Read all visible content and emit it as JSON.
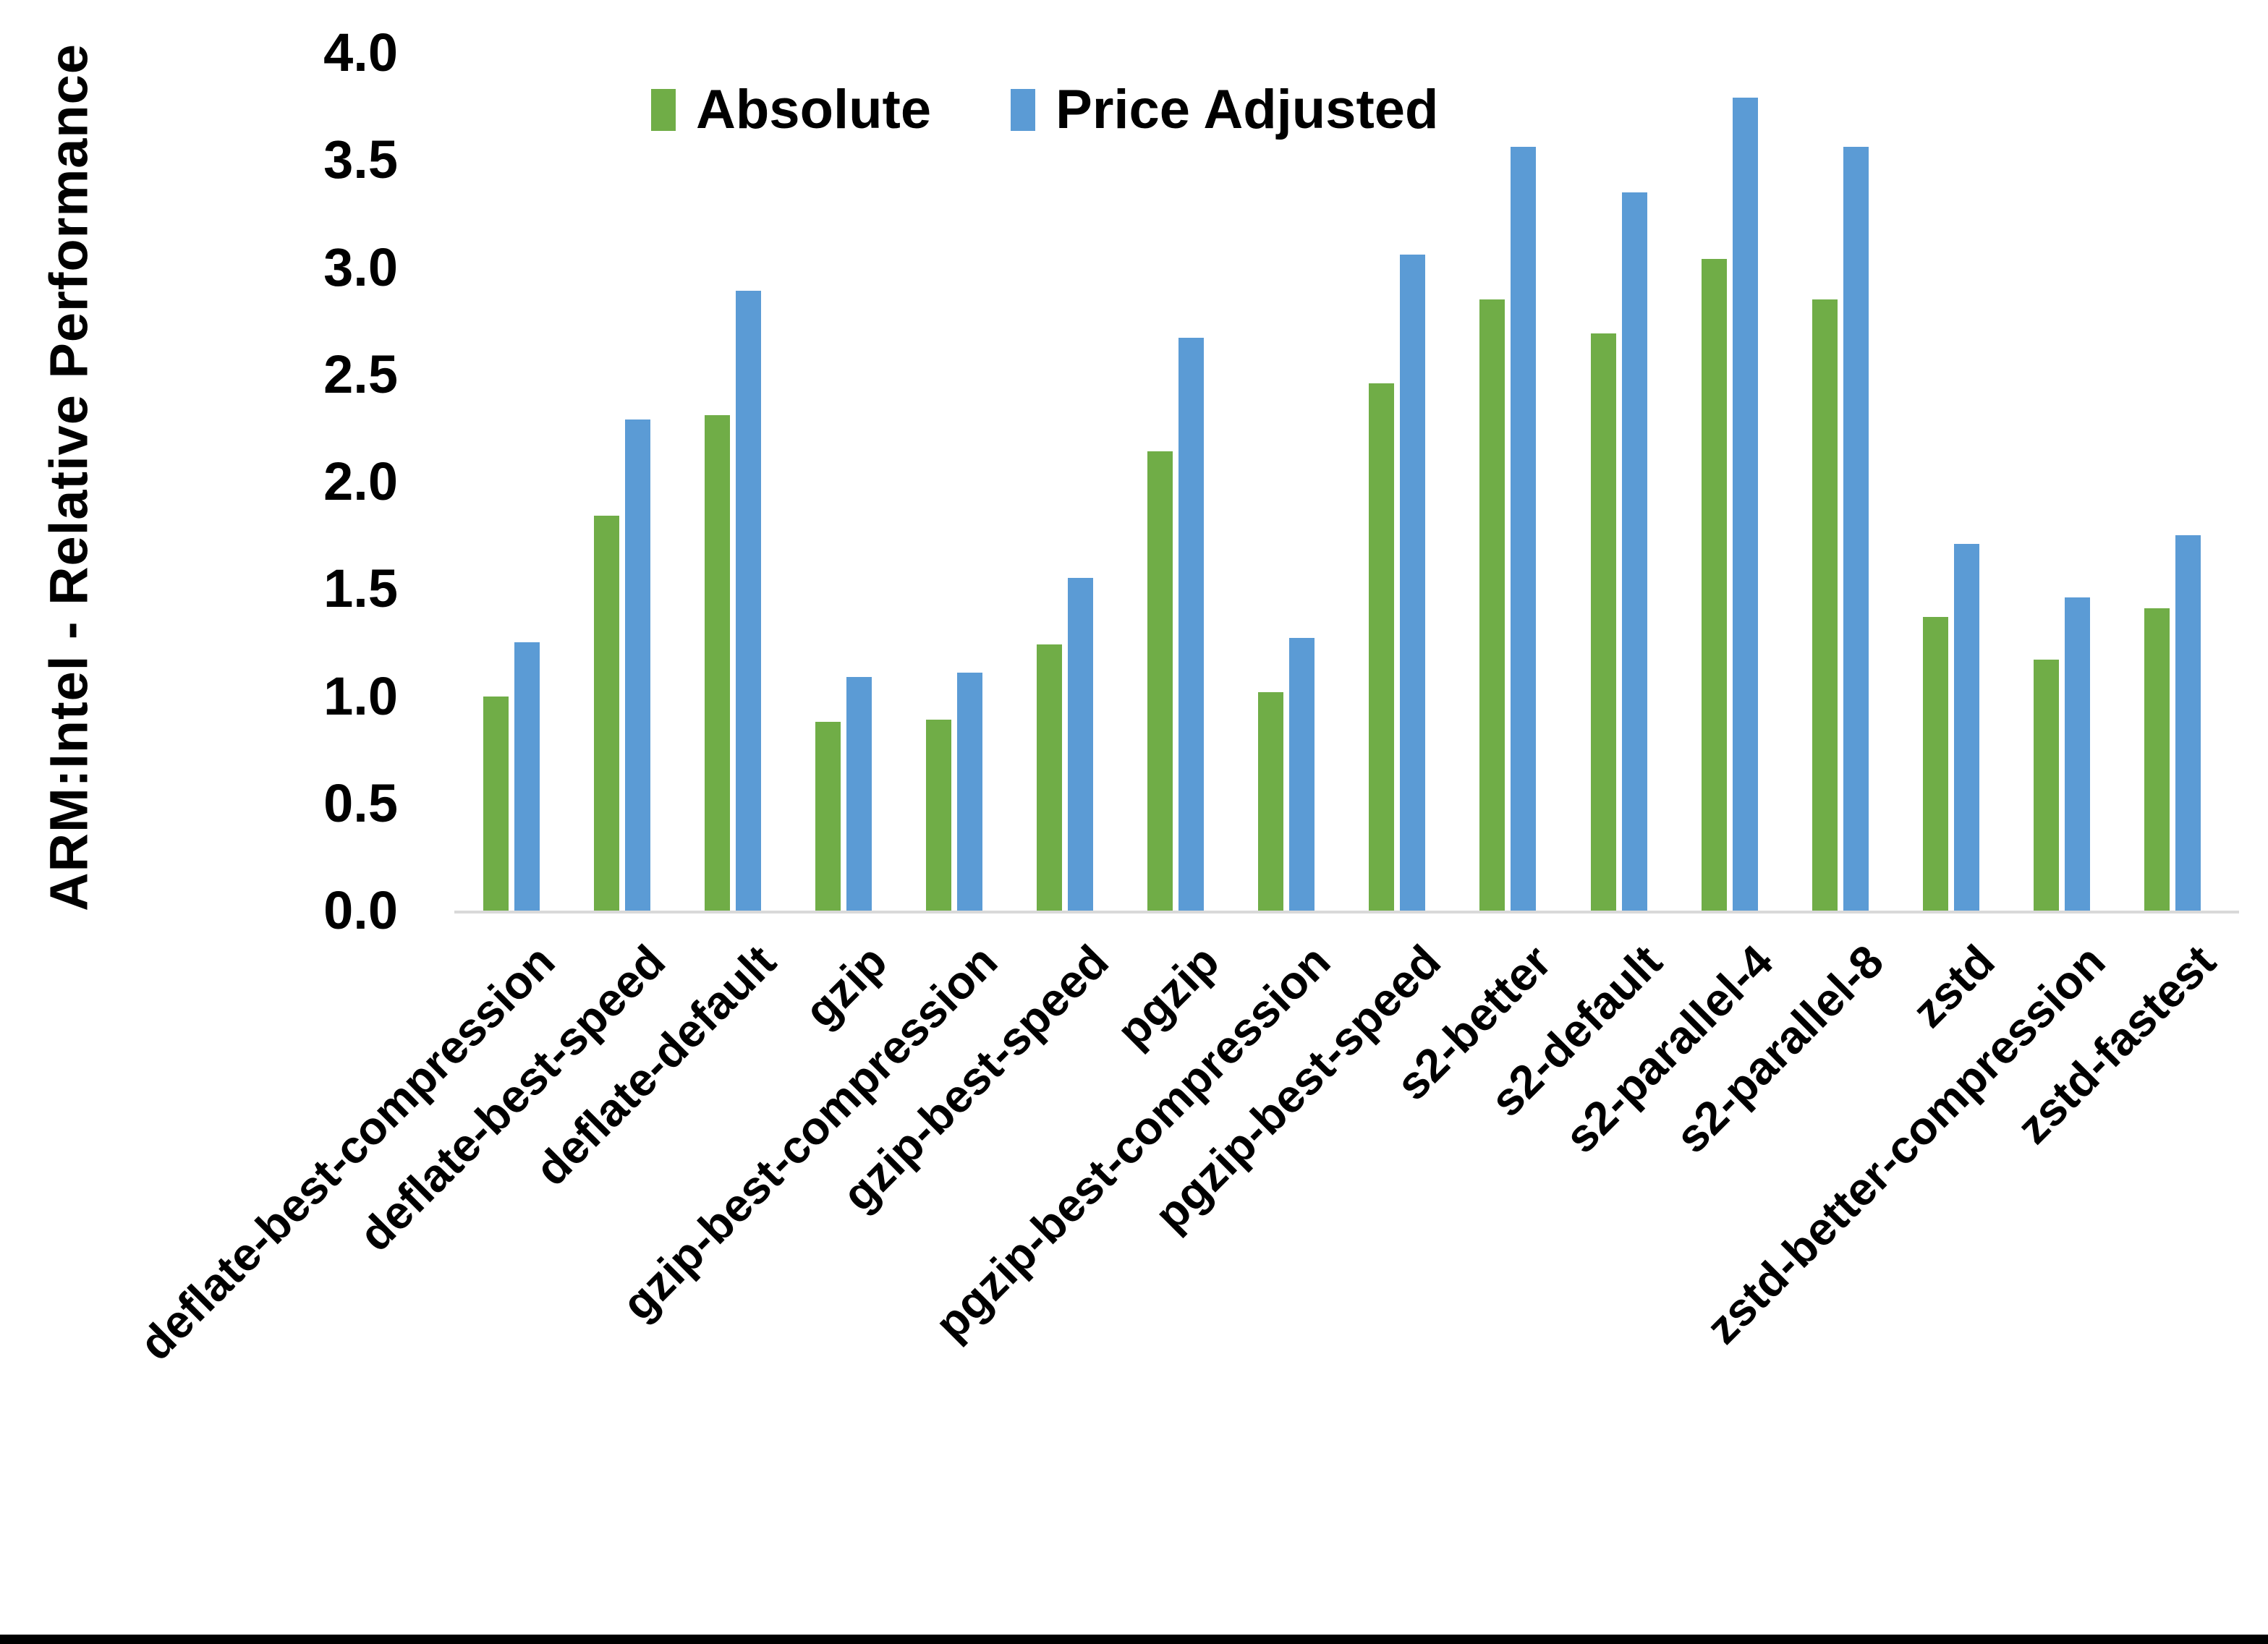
{
  "chart_data": {
    "type": "bar",
    "title": "",
    "xlabel": "",
    "ylabel": "ARM:Intel - Relative Performance",
    "ylim": [
      0.0,
      4.0
    ],
    "ytick_labels": [
      "4.0",
      "3.5",
      "3.0",
      "2.5",
      "2.0",
      "1.5",
      "1.0",
      "0.5",
      "0.0"
    ],
    "grid": false,
    "legend_position": "top-center",
    "categories": [
      "deflate-best-compression",
      "deflate-best-speed",
      "deflate-default",
      "gzip",
      "gzip-best-compression",
      "gzip-best-speed",
      "pgzip",
      "pgzip-best-compression",
      "pgzip-best-speed",
      "s2-better",
      "s2-default",
      "s2-parallel-4",
      "s2-parallel-8",
      "zstd",
      "zstd-better-compression",
      "zstd-fastest"
    ],
    "series": [
      {
        "name": "Absolute",
        "color": "#70AD47",
        "values": [
          1.0,
          1.84,
          2.31,
          0.88,
          0.89,
          1.24,
          2.14,
          1.02,
          2.46,
          2.85,
          2.69,
          3.04,
          2.85,
          1.37,
          1.17,
          1.41
        ]
      },
      {
        "name": "Price Adjusted",
        "color": "#5B9BD5",
        "values": [
          1.25,
          2.29,
          2.89,
          1.09,
          1.11,
          1.55,
          2.67,
          1.27,
          3.06,
          3.56,
          3.35,
          3.79,
          3.56,
          1.71,
          1.46,
          1.75
        ]
      }
    ]
  },
  "colors": {
    "axis_line": "#D9D9D9",
    "text": "#000000",
    "background": "#FFFFFF",
    "bottom_border": "#000000"
  }
}
